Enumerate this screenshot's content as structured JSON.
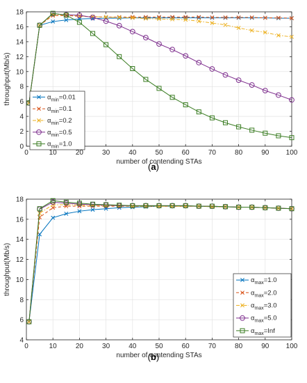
{
  "chart_data": [
    {
      "type": "line",
      "panel_label": "(a)",
      "xlabel": "number of contending STAs",
      "ylabel": "throughput(Mb/s)",
      "xlim": [
        0,
        100
      ],
      "ylim": [
        0,
        18
      ],
      "xticks": [
        0,
        10,
        20,
        30,
        40,
        50,
        60,
        70,
        80,
        90,
        100
      ],
      "yticks": [
        0,
        2,
        4,
        6,
        8,
        10,
        12,
        14,
        16,
        18
      ],
      "grid": true,
      "legend_position": "left-lower-middle",
      "x": [
        1,
        5,
        10,
        15,
        20,
        25,
        30,
        35,
        40,
        45,
        50,
        55,
        60,
        65,
        70,
        75,
        80,
        85,
        90,
        95,
        100
      ],
      "series": [
        {
          "symbol": "α",
          "subscript": "min",
          "value": "=0.01",
          "color": "#0072BD",
          "marker": "x",
          "dash": "solid",
          "values": [
            5.8,
            16.2,
            16.7,
            16.9,
            17.05,
            17.1,
            17.15,
            17.15,
            17.2,
            17.2,
            17.2,
            17.2,
            17.2,
            17.2,
            17.2,
            17.2,
            17.2,
            17.2,
            17.2,
            17.15,
            17.15
          ]
        },
        {
          "symbol": "α",
          "subscript": "min",
          "value": "=0.1",
          "color": "#D95319",
          "marker": "x",
          "dash": "dash",
          "values": [
            5.8,
            16.2,
            17.5,
            17.5,
            17.4,
            17.35,
            17.3,
            17.3,
            17.3,
            17.3,
            17.3,
            17.3,
            17.3,
            17.3,
            17.25,
            17.25,
            17.25,
            17.25,
            17.2,
            17.2,
            17.15
          ]
        },
        {
          "symbol": "α",
          "subscript": "min",
          "value": "=0.2",
          "color": "#EDB120",
          "marker": "x",
          "dash": "dashdot",
          "values": [
            5.8,
            16.2,
            17.6,
            17.6,
            17.45,
            17.35,
            17.3,
            17.25,
            17.2,
            17.1,
            17.05,
            17.0,
            16.95,
            16.75,
            16.5,
            16.25,
            15.85,
            15.5,
            15.25,
            14.85,
            14.65
          ]
        },
        {
          "symbol": "α",
          "subscript": "min",
          "value": "=0.5",
          "color": "#7E2F8E",
          "marker": "o",
          "dash": "solid",
          "values": [
            5.8,
            16.2,
            17.75,
            17.6,
            17.55,
            17.25,
            16.75,
            16.15,
            15.35,
            14.55,
            13.7,
            12.95,
            12.1,
            11.2,
            10.35,
            9.55,
            8.85,
            8.2,
            7.45,
            6.85,
            6.2
          ]
        },
        {
          "symbol": "α",
          "subscript": "min",
          "value": "=1.0",
          "color": "#3B7D23",
          "marker": "s",
          "dash": "solid",
          "values": [
            5.8,
            16.2,
            17.8,
            17.55,
            16.6,
            15.1,
            13.6,
            12.0,
            10.4,
            8.95,
            7.75,
            6.55,
            5.55,
            4.6,
            3.8,
            3.15,
            2.6,
            2.15,
            1.75,
            1.4,
            1.15
          ]
        }
      ]
    },
    {
      "type": "line",
      "panel_label": "(b)",
      "xlabel": "number of contending STAs",
      "ylabel": "throughput(Mb/s)",
      "xlim": [
        0,
        100
      ],
      "ylim": [
        4,
        18
      ],
      "xticks": [
        0,
        10,
        20,
        30,
        40,
        50,
        60,
        70,
        80,
        90,
        100
      ],
      "yticks": [
        4,
        6,
        8,
        10,
        12,
        14,
        16,
        18
      ],
      "grid": true,
      "legend_position": "right-lower-middle",
      "x": [
        1,
        5,
        10,
        15,
        20,
        25,
        30,
        35,
        40,
        45,
        50,
        55,
        60,
        65,
        70,
        75,
        80,
        85,
        90,
        95,
        100
      ],
      "series": [
        {
          "symbol": "α",
          "subscript": "max",
          "value": "=1.0",
          "color": "#0072BD",
          "marker": "x",
          "dash": "solid",
          "values": [
            5.8,
            14.5,
            16.15,
            16.55,
            16.8,
            16.95,
            17.05,
            17.15,
            17.2,
            17.25,
            17.3,
            17.3,
            17.3,
            17.3,
            17.25,
            17.25,
            17.2,
            17.2,
            17.15,
            17.1,
            17.05
          ]
        },
        {
          "symbol": "α",
          "subscript": "max",
          "value": "=2.0",
          "color": "#D95319",
          "marker": "x",
          "dash": "dash",
          "values": [
            5.8,
            16.2,
            17.15,
            17.3,
            17.3,
            17.3,
            17.3,
            17.3,
            17.3,
            17.3,
            17.3,
            17.3,
            17.3,
            17.3,
            17.25,
            17.25,
            17.2,
            17.2,
            17.15,
            17.1,
            17.05
          ]
        },
        {
          "symbol": "α",
          "subscript": "max",
          "value": "=3.0",
          "color": "#EDB120",
          "marker": "x",
          "dash": "dashdot",
          "values": [
            5.8,
            16.6,
            17.45,
            17.45,
            17.4,
            17.35,
            17.35,
            17.35,
            17.3,
            17.3,
            17.3,
            17.3,
            17.3,
            17.3,
            17.25,
            17.25,
            17.2,
            17.2,
            17.15,
            17.1,
            17.05
          ]
        },
        {
          "symbol": "α",
          "subscript": "max",
          "value": "=5.0",
          "color": "#7E2F8E",
          "marker": "o",
          "dash": "solid",
          "values": [
            5.8,
            17.0,
            17.7,
            17.6,
            17.5,
            17.45,
            17.4,
            17.35,
            17.35,
            17.35,
            17.35,
            17.35,
            17.35,
            17.3,
            17.3,
            17.25,
            17.2,
            17.2,
            17.15,
            17.1,
            17.05
          ]
        },
        {
          "symbol": "α",
          "subscript": "max",
          "value": "=Inf",
          "color": "#3B7D23",
          "marker": "s",
          "dash": "solid",
          "values": [
            5.8,
            17.05,
            17.85,
            17.7,
            17.6,
            17.5,
            17.45,
            17.4,
            17.35,
            17.35,
            17.35,
            17.35,
            17.35,
            17.3,
            17.3,
            17.25,
            17.2,
            17.2,
            17.15,
            17.1,
            17.05
          ]
        }
      ]
    }
  ]
}
